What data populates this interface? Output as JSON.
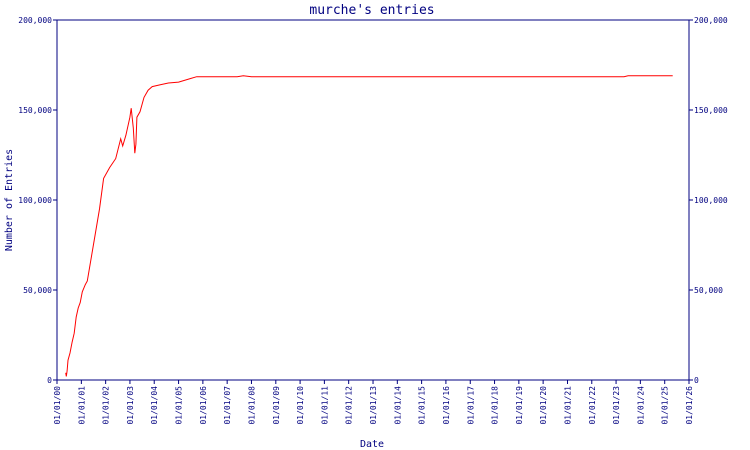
{
  "chart_data": {
    "type": "line",
    "title": "murche's entries",
    "xlabel": "Date",
    "ylabel": "Number of Entries",
    "ylim": [
      0,
      200000
    ],
    "xlim": [
      "2000-01-01",
      "2026-01-01"
    ],
    "y_ticks": [
      {
        "value": 0,
        "label": "0"
      },
      {
        "value": 50000,
        "label": "50,000"
      },
      {
        "value": 100000,
        "label": "100,000"
      },
      {
        "value": 150000,
        "label": "150,000"
      },
      {
        "value": 200000,
        "label": "200,000"
      }
    ],
    "x_ticks": [
      {
        "date": "2000-01-01",
        "label": "01/01/00"
      },
      {
        "date": "2001-01-01",
        "label": "01/01/01"
      },
      {
        "date": "2002-01-01",
        "label": "01/01/02"
      },
      {
        "date": "2003-01-01",
        "label": "01/01/03"
      },
      {
        "date": "2004-01-01",
        "label": "01/01/04"
      },
      {
        "date": "2005-01-01",
        "label": "01/01/05"
      },
      {
        "date": "2006-01-01",
        "label": "01/01/06"
      },
      {
        "date": "2007-01-01",
        "label": "01/01/07"
      },
      {
        "date": "2008-01-01",
        "label": "01/01/08"
      },
      {
        "date": "2009-01-01",
        "label": "01/01/09"
      },
      {
        "date": "2010-01-01",
        "label": "01/01/10"
      },
      {
        "date": "2011-01-01",
        "label": "01/01/11"
      },
      {
        "date": "2012-01-01",
        "label": "01/01/12"
      },
      {
        "date": "2013-01-01",
        "label": "01/01/13"
      },
      {
        "date": "2014-01-01",
        "label": "01/01/14"
      },
      {
        "date": "2015-01-01",
        "label": "01/01/15"
      },
      {
        "date": "2016-01-01",
        "label": "01/01/16"
      },
      {
        "date": "2017-01-01",
        "label": "01/01/17"
      },
      {
        "date": "2018-01-01",
        "label": "01/01/18"
      },
      {
        "date": "2019-01-01",
        "label": "01/01/19"
      },
      {
        "date": "2020-01-01",
        "label": "01/01/20"
      },
      {
        "date": "2021-01-01",
        "label": "01/01/21"
      },
      {
        "date": "2022-01-01",
        "label": "01/01/22"
      },
      {
        "date": "2023-01-01",
        "label": "01/01/23"
      },
      {
        "date": "2024-01-01",
        "label": "01/01/24"
      },
      {
        "date": "2025-01-01",
        "label": "01/01/25"
      },
      {
        "date": "2026-01-01",
        "label": "01/01/26"
      }
    ],
    "grid": false,
    "series": [
      {
        "color": "#ff0000",
        "points": [
          {
            "x": "2000-05-10",
            "y": 4000
          },
          {
            "x": "2000-05-20",
            "y": 2000
          },
          {
            "x": "2000-06-01",
            "y": 5000
          },
          {
            "x": "2000-06-15",
            "y": 11000
          },
          {
            "x": "2000-07-15",
            "y": 15000
          },
          {
            "x": "2000-08-15",
            "y": 21000
          },
          {
            "x": "2000-09-15",
            "y": 26000
          },
          {
            "x": "2000-10-15",
            "y": 35000
          },
          {
            "x": "2000-11-15",
            "y": 40000
          },
          {
            "x": "2000-12-15",
            "y": 43000
          },
          {
            "x": "2001-01-15",
            "y": 49000
          },
          {
            "x": "2001-03-01",
            "y": 53000
          },
          {
            "x": "2001-04-01",
            "y": 55000
          },
          {
            "x": "2001-07-01",
            "y": 75000
          },
          {
            "x": "2001-10-01",
            "y": 95000
          },
          {
            "x": "2001-12-01",
            "y": 112000
          },
          {
            "x": "2002-03-01",
            "y": 118000
          },
          {
            "x": "2002-06-01",
            "y": 123000
          },
          {
            "x": "2002-08-15",
            "y": 134000
          },
          {
            "x": "2002-09-15",
            "y": 130000
          },
          {
            "x": "2002-11-01",
            "y": 136000
          },
          {
            "x": "2003-01-01",
            "y": 146000
          },
          {
            "x": "2003-01-20",
            "y": 151000
          },
          {
            "x": "2003-02-20",
            "y": 140000
          },
          {
            "x": "2003-03-15",
            "y": 126000
          },
          {
            "x": "2003-04-01",
            "y": 131000
          },
          {
            "x": "2003-04-15",
            "y": 146000
          },
          {
            "x": "2003-06-01",
            "y": 149000
          },
          {
            "x": "2003-08-01",
            "y": 157000
          },
          {
            "x": "2003-10-01",
            "y": 161000
          },
          {
            "x": "2003-12-01",
            "y": 163000
          },
          {
            "x": "2004-04-01",
            "y": 164000
          },
          {
            "x": "2004-08-01",
            "y": 165000
          },
          {
            "x": "2005-01-01",
            "y": 165500
          },
          {
            "x": "2005-07-01",
            "y": 167500
          },
          {
            "x": "2005-10-01",
            "y": 168500
          },
          {
            "x": "2007-06-01",
            "y": 168500
          },
          {
            "x": "2007-09-01",
            "y": 169000
          },
          {
            "x": "2008-01-01",
            "y": 168500
          },
          {
            "x": "2015-01-01",
            "y": 168500
          },
          {
            "x": "2023-05-01",
            "y": 168500
          },
          {
            "x": "2023-07-01",
            "y": 169000
          },
          {
            "x": "2025-05-01",
            "y": 169000
          }
        ]
      }
    ]
  }
}
